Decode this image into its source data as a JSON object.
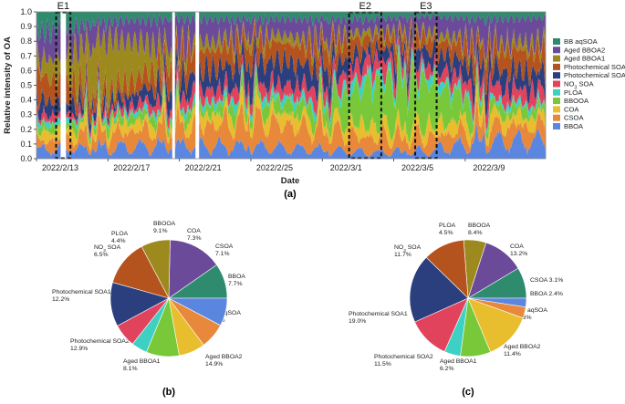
{
  "panel_labels": {
    "a": "(a)",
    "b": "(b)",
    "c": "(c)"
  },
  "colors": {
    "BB aqSOA": "#2e8b6e",
    "Aged BBOA2": "#6b4a9a",
    "Aged BBOA1": "#9c8a1e",
    "Photochemical SOA2": "#b5531f",
    "Photochemical SOA1": "#2b3f7e",
    "NO3 SOA": "#e2435c",
    "PLOA": "#3fd0c4",
    "BBOOA": "#78c83a",
    "COA": "#e8be2e",
    "CSOA": "#e8883a",
    "BBOA": "#5b86e0"
  },
  "chart_data": [
    {
      "type": "area",
      "stacked": true,
      "xlabel": "Date",
      "ylabel": "Relative intensity of OA",
      "ylim": [
        0,
        1.0
      ],
      "yticks": [
        "0.0",
        "0.1",
        "0.2",
        "0.3",
        "0.4",
        "0.5",
        "0.6",
        "0.7",
        "0.8",
        "0.9",
        "1.0"
      ],
      "xticks": [
        "2022/2/13",
        "2022/2/17",
        "2022/2/21",
        "2022/2/25",
        "2022/3/1",
        "2022/3/5",
        "2022/3/9"
      ],
      "xlim_days": [
        0,
        28.5
      ],
      "legend_position": "right",
      "legend": [
        {
          "label": "BB aqSOA",
          "key": "BB aqSOA"
        },
        {
          "label": "Aged BBOA2",
          "key": "Aged BBOA2"
        },
        {
          "label": "Aged BBOA1",
          "key": "Aged BBOA1"
        },
        {
          "label": "Photochemical SOA2",
          "key": "Photochemical SOA2"
        },
        {
          "label": "Photochemical SOA1",
          "key": "Photochemical SOA1"
        },
        {
          "label": "NO",
          "sub": "3",
          "label_tail": " SOA",
          "key": "NO3 SOA"
        },
        {
          "label": "PLOA",
          "key": "PLOA"
        },
        {
          "label": "BBOOA",
          "key": "BBOOA"
        },
        {
          "label": "COA",
          "key": "COA"
        },
        {
          "label": "CSOA",
          "key": "CSOA"
        },
        {
          "label": "BBOA",
          "key": "BBOA"
        }
      ],
      "episodes": [
        {
          "label": "E1",
          "start": 1.1,
          "end": 1.9
        },
        {
          "label": "E2",
          "start": 17.5,
          "end": 19.3
        },
        {
          "label": "E3",
          "start": 21.2,
          "end": 22.4
        }
      ],
      "gaps": [
        [
          1.35,
          1.65
        ],
        [
          7.6,
          7.75
        ],
        [
          8.9,
          9.1
        ]
      ],
      "series_order": [
        "BBOA",
        "CSOA",
        "COA",
        "BBOOA",
        "PLOA",
        "NO3 SOA",
        "Photochemical SOA1",
        "Photochemical SOA2",
        "Aged BBOA1",
        "Aged BBOA2",
        "BB aqSOA"
      ],
      "segments": [
        {
          "day": 0,
          "values": {
            "BBOA": 0.06,
            "CSOA": 0.05,
            "COA": 0.06,
            "BBOOA": 0.04,
            "PLOA": 0.03,
            "NO3 SOA": 0.05,
            "Photochemical SOA1": 0.1,
            "Photochemical SOA2": 0.18,
            "Aged BBOA1": 0.08,
            "Aged BBOA2": 0.2,
            "BB aqSOA": 0.15
          }
        },
        {
          "day": 4,
          "values": {
            "BBOA": 0.07,
            "CSOA": 0.1,
            "COA": 0.06,
            "BBOOA": 0.05,
            "PLOA": 0.02,
            "NO3 SOA": 0.03,
            "Photochemical SOA1": 0.05,
            "Photochemical SOA2": 0.07,
            "Aged BBOA1": 0.37,
            "Aged BBOA2": 0.12,
            "BB aqSOA": 0.06
          }
        },
        {
          "day": 8,
          "values": {
            "BBOA": 0.09,
            "CSOA": 0.12,
            "COA": 0.06,
            "BBOOA": 0.05,
            "PLOA": 0.03,
            "NO3 SOA": 0.08,
            "Photochemical SOA1": 0.12,
            "Photochemical SOA2": 0.15,
            "Aged BBOA1": 0.06,
            "Aged BBOA2": 0.19,
            "BB aqSOA": 0.05
          }
        },
        {
          "day": 12,
          "values": {
            "BBOA": 0.08,
            "CSOA": 0.18,
            "COA": 0.08,
            "BBOOA": 0.07,
            "PLOA": 0.04,
            "NO3 SOA": 0.07,
            "Photochemical SOA1": 0.16,
            "Photochemical SOA2": 0.12,
            "Aged BBOA1": 0.05,
            "Aged BBOA2": 0.1,
            "BB aqSOA": 0.05
          }
        },
        {
          "day": 16,
          "values": {
            "BBOA": 0.06,
            "CSOA": 0.14,
            "COA": 0.07,
            "BBOOA": 0.09,
            "PLOA": 0.04,
            "NO3 SOA": 0.09,
            "Photochemical SOA1": 0.14,
            "Photochemical SOA2": 0.14,
            "Aged BBOA1": 0.05,
            "Aged BBOA2": 0.13,
            "BB aqSOA": 0.05
          }
        },
        {
          "day": 18.5,
          "values": {
            "BBOA": 0.04,
            "CSOA": 0.1,
            "COA": 0.08,
            "BBOOA": 0.3,
            "PLOA": 0.06,
            "NO3 SOA": 0.1,
            "Photochemical SOA1": 0.06,
            "Photochemical SOA2": 0.09,
            "Aged BBOA1": 0.04,
            "Aged BBOA2": 0.08,
            "BB aqSOA": 0.05
          }
        },
        {
          "day": 21.8,
          "values": {
            "BBOA": 0.05,
            "CSOA": 0.09,
            "COA": 0.07,
            "BBOOA": 0.33,
            "PLOA": 0.05,
            "NO3 SOA": 0.06,
            "Photochemical SOA1": 0.1,
            "Photochemical SOA2": 0.08,
            "Aged BBOA1": 0.04,
            "Aged BBOA2": 0.1,
            "BB aqSOA": 0.03
          }
        },
        {
          "day": 25,
          "values": {
            "BBOA": 0.12,
            "CSOA": 0.1,
            "COA": 0.08,
            "BBOOA": 0.06,
            "PLOA": 0.03,
            "NO3 SOA": 0.1,
            "Photochemical SOA1": 0.13,
            "Photochemical SOA2": 0.13,
            "Aged BBOA1": 0.04,
            "Aged BBOA2": 0.16,
            "BB aqSOA": 0.05
          }
        },
        {
          "day": 28.5,
          "values": {
            "BBOA": 0.12,
            "CSOA": 0.1,
            "COA": 0.06,
            "BBOOA": 0.06,
            "PLOA": 0.03,
            "NO3 SOA": 0.09,
            "Photochemical SOA1": 0.12,
            "Photochemical SOA2": 0.15,
            "Aged BBOA1": 0.06,
            "Aged BBOA2": 0.17,
            "BB aqSOA": 0.04
          }
        }
      ]
    },
    {
      "type": "pie",
      "panel": "b",
      "slices": [
        {
          "key": "BB aqSOA",
          "value": 9.7,
          "name": "BB aqSOA",
          "pct": "9.7%"
        },
        {
          "key": "Aged BBOA2",
          "value": 14.9,
          "name": "Aged BBOA2",
          "pct": "14.9%"
        },
        {
          "key": "Aged BBOA1",
          "value": 8.1,
          "name": "Aged BBOA1",
          "pct": "8.1%"
        },
        {
          "key": "Photochemical SOA2",
          "value": 12.9,
          "name": "Photochemical SOA2",
          "pct": "12.9%"
        },
        {
          "key": "Photochemical SOA1",
          "value": 12.2,
          "name": "Photochemical SOA1",
          "pct": "12.2%"
        },
        {
          "key": "NO3 SOA",
          "value": 6.5,
          "name": "NO",
          "sub": "3",
          "name_tail": " SOA",
          "pct": "6.5%"
        },
        {
          "key": "PLOA",
          "value": 4.4,
          "name": "PLOA",
          "pct": "4.4%"
        },
        {
          "key": "BBOOA",
          "value": 9.1,
          "name": "BBOOA",
          "pct": "9.1%"
        },
        {
          "key": "COA",
          "value": 7.3,
          "name": "COA",
          "pct": "7.3%"
        },
        {
          "key": "CSOA",
          "value": 7.1,
          "name": "CSOA",
          "pct": "7.1%"
        },
        {
          "key": "BBOA",
          "value": 7.7,
          "name": "BBOA",
          "pct": "7.7%"
        }
      ]
    },
    {
      "type": "pie",
      "panel": "c",
      "slices": [
        {
          "key": "BB aqSOA",
          "value": 8.6,
          "name": "BB aqSOA",
          "pct": "8.6%"
        },
        {
          "key": "Aged BBOA2",
          "value": 11.4,
          "name": "Aged BBOA2",
          "pct": "11.4%"
        },
        {
          "key": "Aged BBOA1",
          "value": 6.2,
          "name": "Aged BBOA1",
          "pct": "6.2%"
        },
        {
          "key": "Photochemical SOA2",
          "value": 11.5,
          "name": "Photochemical SOA2",
          "pct": "11.5%"
        },
        {
          "key": "Photochemical SOA1",
          "value": 19.0,
          "name": "Photochemical SOA1",
          "pct": "19.0%"
        },
        {
          "key": "NO3 SOA",
          "value": 11.7,
          "name": "NO",
          "sub": "3",
          "name_tail": " SOA",
          "pct": "11.7%"
        },
        {
          "key": "PLOA",
          "value": 4.5,
          "name": "PLOA",
          "pct": "4.5%"
        },
        {
          "key": "BBOOA",
          "value": 8.4,
          "name": "BBOOA",
          "pct": "8.4%"
        },
        {
          "key": "COA",
          "value": 13.2,
          "name": "COA",
          "pct": "13.2%"
        },
        {
          "key": "CSOA",
          "value": 3.1,
          "name": "CSOA",
          "pct": "3.1%"
        },
        {
          "key": "BBOA",
          "value": 2.4,
          "name": "BBOA",
          "pct": "2.4%"
        }
      ]
    }
  ]
}
